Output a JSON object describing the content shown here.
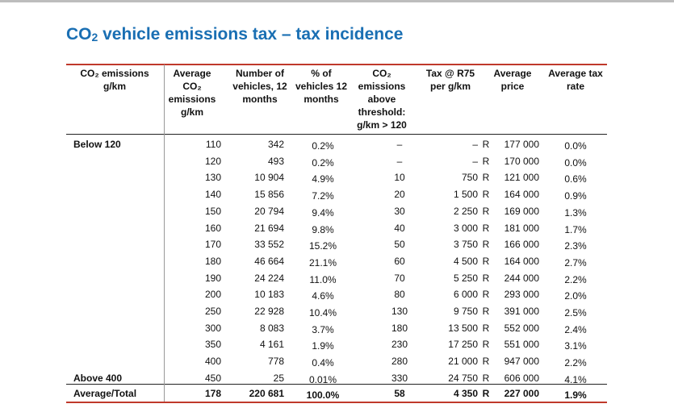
{
  "title_main": "CO",
  "title_sub": "2",
  "title_rest": " vehicle emissions tax – tax incidence",
  "headers": [
    "CO₂ emissions g/km",
    "Average CO₂ emissions g/km",
    "Number of vehicles, 12 months",
    "% of vehicles 12 months",
    "CO₂ emissions above threshold: g/km > 120",
    "Tax @ R75 per g/km",
    "Average price",
    "Average tax rate"
  ],
  "rows": [
    {
      "band": "Below 120",
      "avg": "110",
      "num": "342",
      "pct": "0.2%",
      "above": "–",
      "tax": "–",
      "r": "R",
      "price": "177 000",
      "rate": "0.0%"
    },
    {
      "band": "",
      "avg": "120",
      "num": "493",
      "pct": "0.2%",
      "above": "–",
      "tax": "–",
      "r": "R",
      "price": "170 000",
      "rate": "0.0%"
    },
    {
      "band": "",
      "avg": "130",
      "num": "10 904",
      "pct": "4.9%",
      "above": "10",
      "tax": "750",
      "r": "R",
      "price": "121 000",
      "rate": "0.6%"
    },
    {
      "band": "",
      "avg": "140",
      "num": "15 856",
      "pct": "7.2%",
      "above": "20",
      "tax": "1 500",
      "r": "R",
      "price": "164 000",
      "rate": "0.9%"
    },
    {
      "band": "",
      "avg": "150",
      "num": "20 794",
      "pct": "9.4%",
      "above": "30",
      "tax": "2 250",
      "r": "R",
      "price": "169 000",
      "rate": "1.3%"
    },
    {
      "band": "",
      "avg": "160",
      "num": "21 694",
      "pct": "9.8%",
      "above": "40",
      "tax": "3 000",
      "r": "R",
      "price": "181 000",
      "rate": "1.7%"
    },
    {
      "band": "",
      "avg": "170",
      "num": "33 552",
      "pct": "15.2%",
      "above": "50",
      "tax": "3 750",
      "r": "R",
      "price": "166 000",
      "rate": "2.3%"
    },
    {
      "band": "",
      "avg": "180",
      "num": "46 664",
      "pct": "21.1%",
      "above": "60",
      "tax": "4 500",
      "r": "R",
      "price": "164 000",
      "rate": "2.7%"
    },
    {
      "band": "",
      "avg": "190",
      "num": "24 224",
      "pct": "11.0%",
      "above": "70",
      "tax": "5 250",
      "r": "R",
      "price": "244 000",
      "rate": "2.2%"
    },
    {
      "band": "",
      "avg": "200",
      "num": "10 183",
      "pct": "4.6%",
      "above": "80",
      "tax": "6 000",
      "r": "R",
      "price": "293 000",
      "rate": "2.0%"
    },
    {
      "band": "",
      "avg": "250",
      "num": "22 928",
      "pct": "10.4%",
      "above": "130",
      "tax": "9 750",
      "r": "R",
      "price": "391 000",
      "rate": "2.5%"
    },
    {
      "band": "",
      "avg": "300",
      "num": "8 083",
      "pct": "3.7%",
      "above": "180",
      "tax": "13 500",
      "r": "R",
      "price": "552 000",
      "rate": "2.4%"
    },
    {
      "band": "",
      "avg": "350",
      "num": "4 161",
      "pct": "1.9%",
      "above": "230",
      "tax": "17 250",
      "r": "R",
      "price": "551 000",
      "rate": "3.1%"
    },
    {
      "band": "",
      "avg": "400",
      "num": "778",
      "pct": "0.4%",
      "above": "280",
      "tax": "21 000",
      "r": "R",
      "price": "947 000",
      "rate": "2.2%"
    },
    {
      "band": "Above 400",
      "avg": "450",
      "num": "25",
      "pct": "0.01%",
      "above": "330",
      "tax": "24 750",
      "r": "R",
      "price": "606 000",
      "rate": "4.1%"
    }
  ],
  "total": {
    "band": "Average/Total",
    "avg": "178",
    "num": "220 681",
    "pct": "100.0%",
    "above": "58",
    "tax": "4 350",
    "r": "R",
    "price": "227 000",
    "rate": "1.9%"
  }
}
